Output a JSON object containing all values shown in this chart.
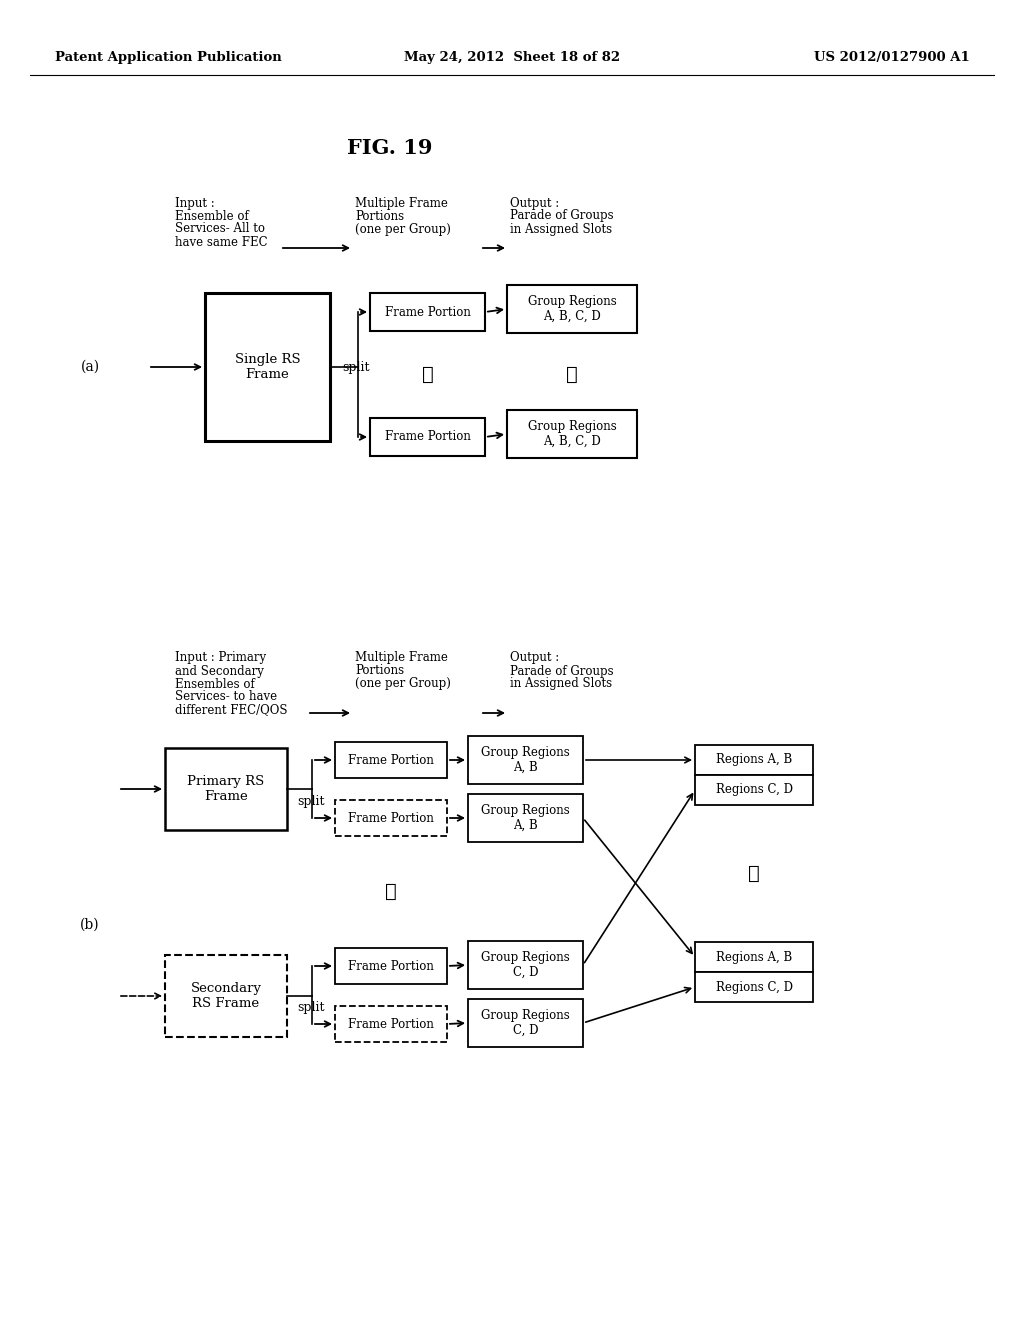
{
  "header_left": "Patent Application Publication",
  "header_mid": "May 24, 2012  Sheet 18 of 82",
  "header_right": "US 2012/0127900 A1",
  "fig_title": "FIG. 19",
  "bg_color": "#ffffff",
  "text_color": "#000000"
}
